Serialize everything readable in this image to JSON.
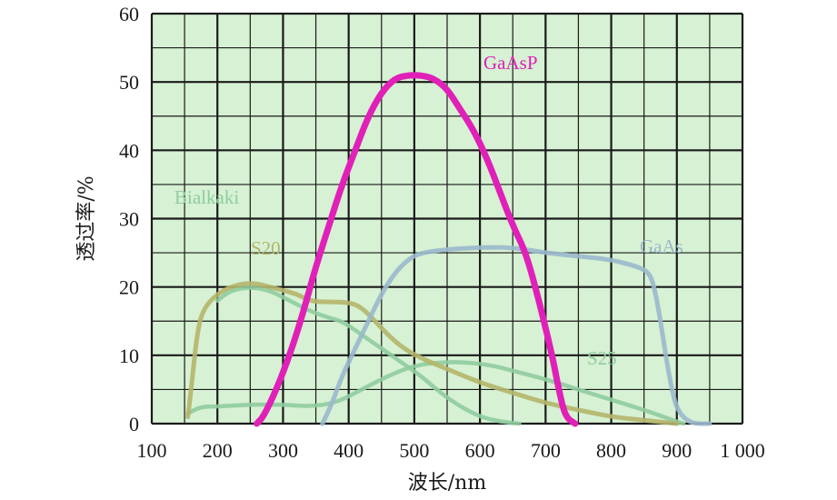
{
  "chart_data": {
    "type": "line",
    "xlabel": "波长/nm",
    "ylabel": "透过率/%",
    "xlim": [
      100,
      1000
    ],
    "ylim": [
      0,
      60
    ],
    "x_ticks": [
      100,
      200,
      300,
      400,
      500,
      600,
      700,
      800,
      900,
      1000
    ],
    "x_tick_labels": [
      "100",
      "200",
      "300",
      "400",
      "500",
      "600",
      "700",
      "800",
      "900",
      "1 000"
    ],
    "y_ticks": [
      0,
      10,
      20,
      30,
      40,
      50,
      60
    ],
    "y_tick_labels": [
      "0",
      "10",
      "20",
      "30",
      "40",
      "50",
      "60"
    ],
    "grid": true,
    "plot_background": "#d6f1d3",
    "grid_color": "#1a1a1a",
    "series": [
      {
        "name": "GaAsP",
        "color": "#e020b8",
        "points": [
          [
            260,
            0
          ],
          [
            270,
            1
          ],
          [
            290,
            5
          ],
          [
            310,
            10
          ],
          [
            330,
            16
          ],
          [
            350,
            23
          ],
          [
            370,
            29
          ],
          [
            390,
            35
          ],
          [
            410,
            40
          ],
          [
            430,
            45
          ],
          [
            450,
            48.5
          ],
          [
            470,
            50.5
          ],
          [
            490,
            51
          ],
          [
            510,
            51
          ],
          [
            530,
            50.5
          ],
          [
            550,
            49
          ],
          [
            570,
            46
          ],
          [
            590,
            43
          ],
          [
            610,
            39
          ],
          [
            630,
            34
          ],
          [
            650,
            29
          ],
          [
            670,
            25
          ],
          [
            690,
            18
          ],
          [
            710,
            10
          ],
          [
            720,
            5
          ],
          [
            730,
            1
          ],
          [
            745,
            0
          ]
        ]
      },
      {
        "name": "GaAs",
        "color": "#9ab8cc",
        "points": [
          [
            360,
            0
          ],
          [
            375,
            3
          ],
          [
            390,
            7
          ],
          [
            410,
            11
          ],
          [
            430,
            15
          ],
          [
            450,
            19
          ],
          [
            470,
            22
          ],
          [
            490,
            24
          ],
          [
            510,
            25
          ],
          [
            550,
            25.5
          ],
          [
            600,
            25.8
          ],
          [
            650,
            25.8
          ],
          [
            700,
            25
          ],
          [
            750,
            24.5
          ],
          [
            800,
            24
          ],
          [
            840,
            23
          ],
          [
            860,
            22
          ],
          [
            870,
            18
          ],
          [
            880,
            12
          ],
          [
            890,
            6
          ],
          [
            900,
            2
          ],
          [
            920,
            0
          ],
          [
            950,
            0
          ]
        ]
      },
      {
        "name": "S20",
        "color": "#b5b56a",
        "points": [
          [
            155,
            1
          ],
          [
            160,
            5
          ],
          [
            170,
            14
          ],
          [
            180,
            17
          ],
          [
            200,
            19
          ],
          [
            220,
            20
          ],
          [
            240,
            20.5
          ],
          [
            260,
            20.5
          ],
          [
            280,
            20
          ],
          [
            300,
            19.5
          ],
          [
            320,
            19
          ],
          [
            340,
            18
          ],
          [
            360,
            17.8
          ],
          [
            400,
            17.8
          ],
          [
            420,
            17
          ],
          [
            440,
            15
          ],
          [
            470,
            12
          ],
          [
            500,
            10
          ],
          [
            550,
            8
          ],
          [
            600,
            6
          ],
          [
            650,
            4.5
          ],
          [
            700,
            3
          ],
          [
            750,
            2
          ],
          [
            800,
            1
          ],
          [
            850,
            0.5
          ],
          [
            900,
            0
          ]
        ]
      },
      {
        "name": "Bialkaki",
        "color": "#8fcc9f",
        "points": [
          [
            200,
            18
          ],
          [
            220,
            19.5
          ],
          [
            250,
            20
          ],
          [
            280,
            19.5
          ],
          [
            310,
            18
          ],
          [
            340,
            16.5
          ],
          [
            370,
            15.5
          ],
          [
            390,
            15
          ],
          [
            420,
            13
          ],
          [
            450,
            11
          ],
          [
            480,
            9
          ],
          [
            510,
            7
          ],
          [
            540,
            4.5
          ],
          [
            570,
            2.5
          ],
          [
            600,
            1
          ],
          [
            630,
            0.3
          ],
          [
            660,
            0
          ]
        ]
      },
      {
        "name": "S25",
        "color": "#8fcc9f",
        "points": [
          [
            155,
            1.5
          ],
          [
            175,
            2.5
          ],
          [
            200,
            2.5
          ],
          [
            250,
            2.8
          ],
          [
            300,
            2.8
          ],
          [
            340,
            2.5
          ],
          [
            380,
            3
          ],
          [
            420,
            5
          ],
          [
            460,
            7
          ],
          [
            500,
            8.5
          ],
          [
            540,
            9
          ],
          [
            580,
            9
          ],
          [
            620,
            8.5
          ],
          [
            660,
            7.5
          ],
          [
            700,
            6.5
          ],
          [
            750,
            5
          ],
          [
            800,
            3.5
          ],
          [
            850,
            2
          ],
          [
            880,
            1
          ],
          [
            900,
            0.3
          ],
          [
            910,
            0
          ]
        ]
      }
    ],
    "annotations": [
      {
        "text": "GaAsP",
        "series": "GaAsP",
        "x": 560,
        "y": 54
      },
      {
        "text": "GaAs",
        "series": "GaAs",
        "x": 840,
        "y": 27
      },
      {
        "text": "S20",
        "series": "S20",
        "x": 270,
        "y": 27
      },
      {
        "text": "Bialkaki",
        "series": "Bialkaki",
        "x": 200,
        "y": 33
      },
      {
        "text": "S25",
        "series": "S25",
        "x": 690,
        "y": 9.5
      }
    ]
  }
}
